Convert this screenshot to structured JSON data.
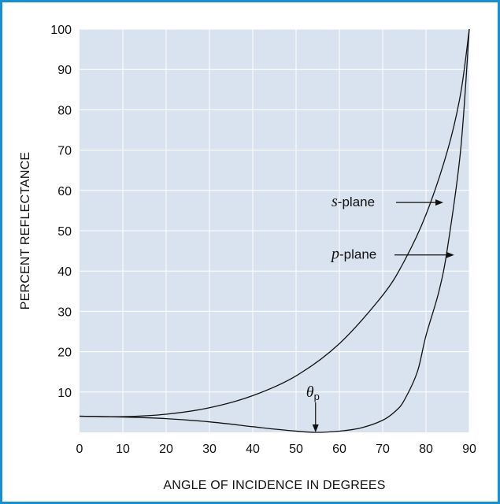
{
  "chart_data": {
    "type": "line",
    "xlabel": "ANGLE OF INCIDENCE IN DEGREES",
    "ylabel": "PERCENT REFLECTANCE",
    "xlim": [
      0,
      90
    ],
    "ylim": [
      0,
      100
    ],
    "x_ticks": [
      0,
      10,
      20,
      30,
      40,
      50,
      60,
      70,
      80,
      90
    ],
    "y_ticks": [
      10,
      20,
      30,
      40,
      50,
      60,
      70,
      80,
      90,
      100
    ],
    "grid": true,
    "colors": {
      "plot_background": "#d9e3f0",
      "grid": "#ffffff",
      "line": "#111111",
      "frame": "#1a8fd0"
    },
    "series": [
      {
        "name": "s-plane",
        "x": [
          0,
          10,
          20,
          30,
          40,
          50,
          60,
          70,
          75,
          80,
          85,
          88,
          90
        ],
        "y": [
          4.0,
          3.9,
          4.5,
          6.1,
          9.1,
          14.0,
          22.0,
          34.0,
          42.5,
          54.0,
          70.0,
          84.0,
          100.0
        ]
      },
      {
        "name": "p-plane",
        "x": [
          0,
          10,
          20,
          30,
          40,
          45,
          50,
          54.5,
          60,
          65,
          70,
          73,
          75,
          78,
          80,
          83,
          85,
          88,
          90
        ],
        "y": [
          4.0,
          3.8,
          3.4,
          2.6,
          1.4,
          0.8,
          0.3,
          0.0,
          0.3,
          1.1,
          3.0,
          5.3,
          8.0,
          15.0,
          24.0,
          35.0,
          46.0,
          70.0,
          100.0
        ]
      }
    ],
    "annotations": [
      {
        "id": "s",
        "italic": "s",
        "text": "-plane",
        "arrow_to": [
          84,
          57
        ]
      },
      {
        "id": "p",
        "italic": "p",
        "text": "-plane",
        "arrow_to": [
          86.5,
          44
        ]
      },
      {
        "id": "theta",
        "symbol": "θ",
        "subscript": "p",
        "arrow_to": [
          54.5,
          0
        ]
      }
    ]
  }
}
